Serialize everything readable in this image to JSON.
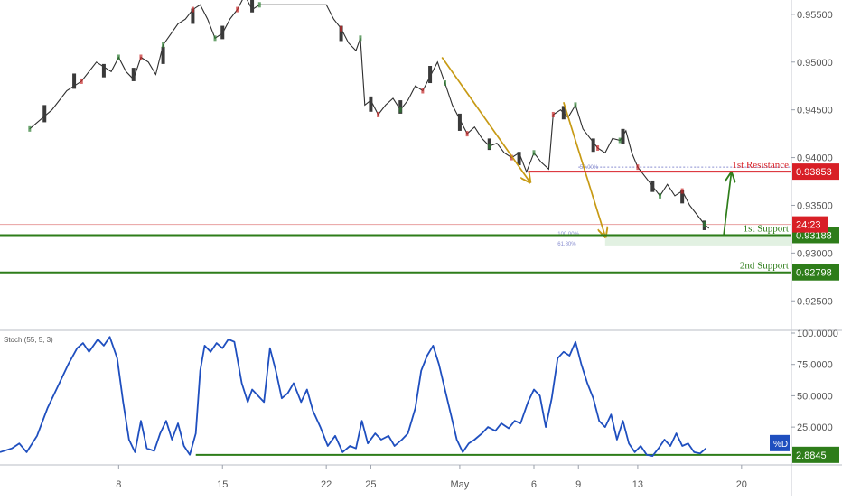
{
  "chart_data": [
    {
      "type": "candlestick",
      "instrument_panel": "price",
      "y_ticks": [
        "0.95500",
        "0.95000",
        "0.94500",
        "0.94000",
        "0.93500",
        "0.93000",
        "0.92500"
      ],
      "ylim": [
        0.922,
        0.9565
      ],
      "x_ticks": [
        {
          "label": "8",
          "day": 8
        },
        {
          "label": "15",
          "day": 15
        },
        {
          "label": "22",
          "day": 22
        },
        {
          "label": "25",
          "day": 25
        },
        {
          "label": "May",
          "day": 31
        },
        {
          "label": "6",
          "day": 36
        },
        {
          "label": "9",
          "day": 39
        },
        {
          "label": "13",
          "day": 43
        },
        {
          "label": "20",
          "day": 50
        }
      ],
      "close_path": [
        [
          2.0,
          0.943
        ],
        [
          3.5,
          0.945
        ],
        [
          4.5,
          0.947
        ],
        [
          5.5,
          0.948
        ],
        [
          6.5,
          0.95
        ],
        [
          7.5,
          0.949
        ],
        [
          8.0,
          0.9505
        ],
        [
          8.5,
          0.949
        ],
        [
          9.0,
          0.9482
        ],
        [
          9.5,
          0.9505
        ],
        [
          10.0,
          0.95
        ],
        [
          10.5,
          0.9487
        ],
        [
          11.0,
          0.9518
        ],
        [
          12.0,
          0.954
        ],
        [
          12.5,
          0.9545
        ],
        [
          13.0,
          0.9555
        ],
        [
          13.5,
          0.956
        ],
        [
          14.0,
          0.9545
        ],
        [
          14.5,
          0.9525
        ],
        [
          15.0,
          0.953
        ],
        [
          15.5,
          0.9545
        ],
        [
          16.0,
          0.9555
        ],
        [
          16.5,
          0.957
        ],
        [
          17.0,
          0.9555
        ],
        [
          17.5,
          0.956
        ],
        [
          22.0,
          0.956
        ],
        [
          22.5,
          0.9545
        ],
        [
          23.0,
          0.9535
        ],
        [
          23.5,
          0.952
        ],
        [
          24.0,
          0.9512
        ],
        [
          24.3,
          0.9525
        ],
        [
          24.6,
          0.9455
        ],
        [
          25.0,
          0.946
        ],
        [
          25.5,
          0.9445
        ],
        [
          26.0,
          0.9455
        ],
        [
          26.5,
          0.9462
        ],
        [
          27.0,
          0.945
        ],
        [
          27.5,
          0.946
        ],
        [
          28.0,
          0.9475
        ],
        [
          28.5,
          0.947
        ],
        [
          29.0,
          0.9485
        ],
        [
          29.5,
          0.95
        ],
        [
          30.0,
          0.9478
        ],
        [
          30.5,
          0.9455
        ],
        [
          31.0,
          0.944
        ],
        [
          31.5,
          0.9425
        ],
        [
          32.0,
          0.9432
        ],
        [
          32.5,
          0.942
        ],
        [
          33.0,
          0.9412
        ],
        [
          33.5,
          0.9415
        ],
        [
          34.0,
          0.9405
        ],
        [
          34.5,
          0.94
        ],
        [
          35.0,
          0.9405
        ],
        [
          35.5,
          0.9385
        ],
        [
          36.0,
          0.9405
        ],
        [
          36.5,
          0.9395
        ],
        [
          37.0,
          0.9388
        ],
        [
          37.3,
          0.9445
        ],
        [
          37.8,
          0.945
        ],
        [
          38.3,
          0.9442
        ],
        [
          38.8,
          0.9455
        ],
        [
          39.3,
          0.943
        ],
        [
          39.8,
          0.942
        ],
        [
          40.3,
          0.941
        ],
        [
          40.8,
          0.9405
        ],
        [
          41.3,
          0.942
        ],
        [
          41.8,
          0.9418
        ],
        [
          42.2,
          0.9428
        ],
        [
          42.6,
          0.9405
        ],
        [
          43.0,
          0.939
        ],
        [
          43.5,
          0.938
        ],
        [
          44.0,
          0.937
        ],
        [
          44.5,
          0.936
        ],
        [
          45.0,
          0.9372
        ],
        [
          45.5,
          0.936
        ],
        [
          46.0,
          0.9365
        ],
        [
          46.5,
          0.935
        ],
        [
          47.0,
          0.934
        ],
        [
          47.5,
          0.933
        ],
        [
          47.8,
          0.9326
        ]
      ],
      "candle_bodies": [
        [
          3.0,
          0.9437,
          0.9455
        ],
        [
          5.0,
          0.9472,
          0.9488
        ],
        [
          7.0,
          0.9484,
          0.9498
        ],
        [
          9.0,
          0.948,
          0.9494
        ],
        [
          11.0,
          0.9498,
          0.9516
        ],
        [
          13.0,
          0.954,
          0.9556
        ],
        [
          15.0,
          0.9524,
          0.9538
        ],
        [
          17.0,
          0.9552,
          0.9566
        ],
        [
          23.0,
          0.9522,
          0.9538
        ],
        [
          25.0,
          0.9448,
          0.9464
        ],
        [
          27.0,
          0.9446,
          0.946
        ],
        [
          29.0,
          0.9478,
          0.9496
        ],
        [
          31.0,
          0.9428,
          0.9446
        ],
        [
          33.0,
          0.9408,
          0.942
        ],
        [
          35.0,
          0.9392,
          0.9406
        ],
        [
          38.0,
          0.944,
          0.9454
        ],
        [
          40.0,
          0.9406,
          0.942
        ],
        [
          42.0,
          0.9414,
          0.943
        ],
        [
          44.0,
          0.9364,
          0.9376
        ],
        [
          46.0,
          0.9352,
          0.9366
        ],
        [
          47.5,
          0.9324,
          0.9334
        ]
      ],
      "levels": [
        {
          "label": "1st Resistance",
          "value": "0.93853",
          "price": 0.93853,
          "color": "#d81f26"
        },
        {
          "label": "1st Support",
          "value": "0.93188",
          "price": 0.93188,
          "color": "#2e7d1a"
        },
        {
          "label": "2nd Support",
          "value": "0.92798",
          "price": 0.92798,
          "color": "#2e7d1a"
        }
      ],
      "countdown": {
        "label": "24:23",
        "price": 0.933,
        "color": "#d81f26"
      },
      "fib_labels": [
        {
          "label": "50.00%",
          "price": 0.939
        },
        {
          "label": "100.00%",
          "price": 0.932
        },
        {
          "label": "61.80%",
          "price": 0.931
        }
      ],
      "fib_zone": [
        0.9308,
        0.932
      ],
      "arrows": [
        {
          "color": "#c79a14",
          "from": [
            29.8,
            0.9505
          ],
          "to": [
            35.7,
            0.9375
          ]
        },
        {
          "color": "#c79a14",
          "from": [
            38.0,
            0.9458
          ],
          "to": [
            40.8,
            0.9318
          ]
        },
        {
          "color": "#2e7d1a",
          "from": [
            48.8,
            0.9319
          ],
          "to": [
            49.3,
            0.9383
          ]
        }
      ],
      "right_axis_color": "#555555"
    },
    {
      "type": "line",
      "title": "Stoch (55, 5, 3)",
      "series": [
        {
          "name": "%D",
          "color": "#1f4fbf",
          "points": [
            [
              0.0,
              5
            ],
            [
              0.8,
              8
            ],
            [
              1.3,
              12
            ],
            [
              1.8,
              5
            ],
            [
              2.5,
              18
            ],
            [
              3.2,
              40
            ],
            [
              4.0,
              60
            ],
            [
              4.6,
              75
            ],
            [
              5.2,
              88
            ],
            [
              5.6,
              92
            ],
            [
              6.0,
              85
            ],
            [
              6.6,
              95
            ],
            [
              7.0,
              90
            ],
            [
              7.4,
              97
            ],
            [
              7.9,
              80
            ],
            [
              8.3,
              45
            ],
            [
              8.7,
              15
            ],
            [
              9.1,
              5
            ],
            [
              9.5,
              30
            ],
            [
              9.9,
              8
            ],
            [
              10.4,
              6
            ],
            [
              10.8,
              20
            ],
            [
              11.2,
              30
            ],
            [
              11.6,
              15
            ],
            [
              12.0,
              28
            ],
            [
              12.4,
              10
            ],
            [
              12.8,
              3
            ],
            [
              13.2,
              20
            ],
            [
              13.5,
              70
            ],
            [
              13.8,
              90
            ],
            [
              14.2,
              85
            ],
            [
              14.6,
              92
            ],
            [
              15.0,
              88
            ],
            [
              15.4,
              95
            ],
            [
              15.8,
              93
            ],
            [
              16.3,
              60
            ],
            [
              16.7,
              45
            ],
            [
              17.0,
              55
            ],
            [
              17.4,
              50
            ],
            [
              17.8,
              45
            ],
            [
              18.2,
              88
            ],
            [
              18.6,
              70
            ],
            [
              19.0,
              48
            ],
            [
              19.4,
              52
            ],
            [
              19.8,
              60
            ],
            [
              20.3,
              45
            ],
            [
              20.7,
              55
            ],
            [
              21.1,
              38
            ],
            [
              21.6,
              25
            ],
            [
              22.1,
              10
            ],
            [
              22.6,
              18
            ],
            [
              23.1,
              5
            ],
            [
              23.6,
              10
            ],
            [
              24.0,
              8
            ],
            [
              24.4,
              30
            ],
            [
              24.8,
              12
            ],
            [
              25.3,
              20
            ],
            [
              25.7,
              15
            ],
            [
              26.2,
              18
            ],
            [
              26.6,
              10
            ],
            [
              27.1,
              15
            ],
            [
              27.5,
              20
            ],
            [
              28.0,
              40
            ],
            [
              28.4,
              70
            ],
            [
              28.8,
              82
            ],
            [
              29.2,
              90
            ],
            [
              29.6,
              75
            ],
            [
              30.0,
              55
            ],
            [
              30.4,
              35
            ],
            [
              30.8,
              15
            ],
            [
              31.2,
              5
            ],
            [
              31.6,
              12
            ],
            [
              32.0,
              15
            ],
            [
              32.5,
              20
            ],
            [
              32.9,
              25
            ],
            [
              33.4,
              22
            ],
            [
              33.8,
              28
            ],
            [
              34.3,
              24
            ],
            [
              34.7,
              30
            ],
            [
              35.1,
              28
            ],
            [
              35.6,
              45
            ],
            [
              36.0,
              55
            ],
            [
              36.4,
              50
            ],
            [
              36.8,
              25
            ],
            [
              37.2,
              48
            ],
            [
              37.6,
              80
            ],
            [
              38.0,
              85
            ],
            [
              38.4,
              82
            ],
            [
              38.8,
              93
            ],
            [
              39.2,
              75
            ],
            [
              39.6,
              60
            ],
            [
              40.0,
              48
            ],
            [
              40.4,
              30
            ],
            [
              40.8,
              25
            ],
            [
              41.2,
              35
            ],
            [
              41.6,
              15
            ],
            [
              42.0,
              30
            ],
            [
              42.4,
              12
            ],
            [
              42.8,
              5
            ],
            [
              43.2,
              10
            ],
            [
              43.6,
              3
            ],
            [
              44.0,
              2
            ],
            [
              44.4,
              8
            ],
            [
              44.8,
              15
            ],
            [
              45.2,
              10
            ],
            [
              45.6,
              20
            ],
            [
              46.0,
              10
            ],
            [
              46.4,
              12
            ],
            [
              46.8,
              5
            ],
            [
              47.2,
              4
            ],
            [
              47.6,
              8
            ]
          ]
        }
      ],
      "y_ticks": [
        "100.0000",
        "75.0000",
        "50.0000",
        "25.0000"
      ],
      "ylim": [
        -3,
        100
      ],
      "current_value": {
        "label": "2.8845",
        "value": 2.8845,
        "color": "#2e7d1a"
      },
      "series_tag": {
        "label": "%D",
        "color": "#1f4fbf"
      },
      "baseline": {
        "value": 2.8845,
        "color": "#2e7d1a"
      }
    }
  ]
}
